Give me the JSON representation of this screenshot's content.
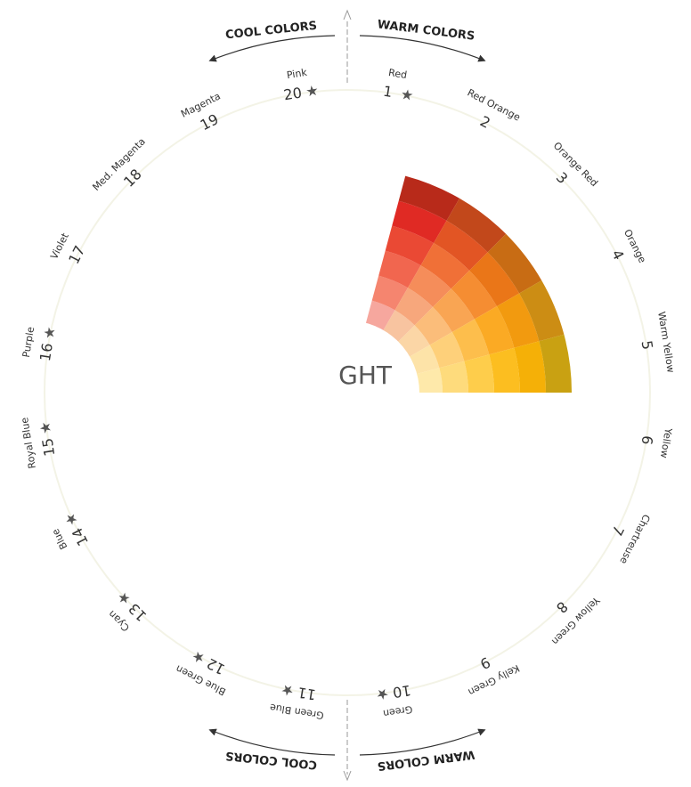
{
  "wheel": {
    "segments": [
      {
        "number": "1",
        "name": "Red",
        "star": true
      },
      {
        "number": "2",
        "name": "Red Orange",
        "star": false
      },
      {
        "number": "3",
        "name": "Orange Red",
        "star": false
      },
      {
        "number": "4",
        "name": "Orange",
        "star": false
      },
      {
        "number": "5",
        "name": "Warm Yellow",
        "star": false
      },
      {
        "number": "6",
        "name": "Yellow",
        "star": false
      },
      {
        "number": "7",
        "name": "Chartreuse",
        "star": false
      },
      {
        "number": "8",
        "name": "Yellow Green",
        "star": false
      },
      {
        "number": "9",
        "name": "Kelly Green",
        "star": false
      },
      {
        "number": "10",
        "name": "Green",
        "star": true
      },
      {
        "number": "11",
        "name": "Green Blue",
        "star": true
      },
      {
        "number": "12",
        "name": "Blue Green",
        "star": true
      },
      {
        "number": "13",
        "name": "Cyan",
        "star": true
      },
      {
        "number": "14",
        "name": "Blue",
        "star": true
      },
      {
        "number": "15",
        "name": "Royal Blue",
        "star": true
      },
      {
        "number": "16",
        "name": "Purple",
        "star": true
      },
      {
        "number": "17",
        "name": "Violet",
        "star": false
      },
      {
        "number": "18",
        "name": "Med. Magenta",
        "star": false
      },
      {
        "number": "19",
        "name": "Magenta",
        "star": false
      },
      {
        "number": "20",
        "name": "Pink",
        "star": true
      }
    ],
    "star_glyph": "★",
    "group_labels": {
      "top_left": "COOL COLORS",
      "top_right": "WARM COLORS",
      "bottom_left": "COOL COLORS",
      "bottom_right": "WARM COLORS"
    },
    "center_text": "GHT",
    "swatch_colors": [
      [
        "#f6a79e",
        "#f5856f",
        "#f1664f",
        "#ea4934",
        "#e02a24",
        "#b82a1a"
      ],
      [
        "#f8c4a0",
        "#f7a77c",
        "#f58d5a",
        "#f07037",
        "#e25524",
        "#c2481b"
      ],
      [
        "#fbd6a6",
        "#fbbd7a",
        "#f9a553",
        "#f58d32",
        "#ea7618",
        "#c86c14"
      ],
      [
        "#fde3a8",
        "#fed07a",
        "#fdbe4c",
        "#fbaa24",
        "#f29a0f",
        "#cc8d14"
      ],
      [
        "#fee9aa",
        "#fedb7c",
        "#fecd4b",
        "#fcbe20",
        "#f5b007",
        "#c9a112"
      ]
    ]
  }
}
